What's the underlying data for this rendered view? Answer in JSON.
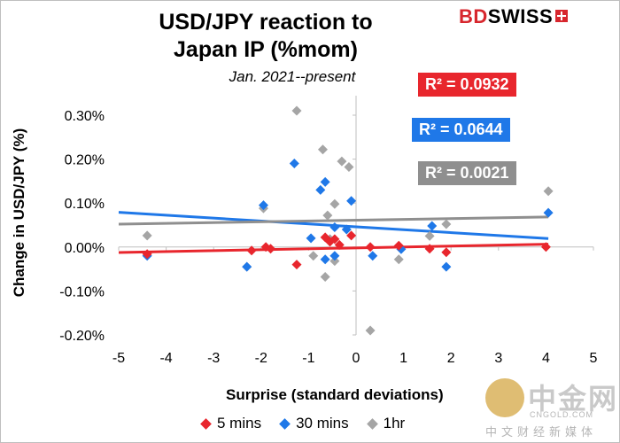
{
  "chart_data": {
    "type": "scatter",
    "title_line1": "USD/JPY reaction to",
    "title_line2": "Japan IP (%mom)",
    "subtitle": "Jan. 2021--present",
    "xlabel": "Surprise (standard deviations)",
    "ylabel": "Change in USD/JPY (%)",
    "xlim": [
      -5,
      5
    ],
    "ylim": [
      -0.2,
      0.3
    ],
    "x_ticks": [
      -5,
      -4,
      -3,
      -2,
      -1,
      0,
      1,
      2,
      3,
      4,
      5
    ],
    "y_ticks": [
      -0.2,
      -0.1,
      0.0,
      0.1,
      0.2,
      0.3
    ],
    "x_tick_labels": [
      "-5",
      "-4",
      "-3",
      "-2",
      "-1",
      "0",
      "1",
      "2",
      "3",
      "4",
      "5"
    ],
    "y_tick_labels": [
      "-0.20%",
      "-0.10%",
      "0.00%",
      "0.10%",
      "0.20%",
      "0.30%"
    ],
    "series": [
      {
        "name": "5 mins",
        "color": "#e8262d",
        "points": [
          [
            -4.4,
            -0.016
          ],
          [
            -2.2,
            -0.008
          ],
          [
            -1.9,
            0.0
          ],
          [
            -1.8,
            -0.004
          ],
          [
            -1.25,
            -0.04
          ],
          [
            -0.65,
            0.022
          ],
          [
            -0.55,
            0.012
          ],
          [
            -0.45,
            0.018
          ],
          [
            -0.35,
            0.005
          ],
          [
            -0.1,
            0.026
          ],
          [
            0.3,
            0.0
          ],
          [
            0.9,
            0.003
          ],
          [
            1.55,
            -0.004
          ],
          [
            1.9,
            -0.012
          ],
          [
            4.0,
            0.0
          ]
        ],
        "trend": {
          "slope": 0.0021,
          "intercept": -0.002,
          "r2_label": "R² = 0.0932"
        }
      },
      {
        "name": "30 mins",
        "color": "#1f78e8",
        "points": [
          [
            -4.4,
            -0.02
          ],
          [
            -2.3,
            -0.045
          ],
          [
            -1.95,
            0.095
          ],
          [
            -1.3,
            0.19
          ],
          [
            -0.95,
            0.02
          ],
          [
            -0.75,
            0.13
          ],
          [
            -0.65,
            0.148
          ],
          [
            -0.65,
            -0.028
          ],
          [
            -0.45,
            0.045
          ],
          [
            -0.45,
            -0.02
          ],
          [
            -0.2,
            0.04
          ],
          [
            -0.1,
            0.105
          ],
          [
            0.35,
            -0.02
          ],
          [
            0.95,
            -0.005
          ],
          [
            1.6,
            0.048
          ],
          [
            1.9,
            -0.045
          ],
          [
            4.05,
            0.078
          ]
        ],
        "trend": {
          "slope": -0.0066,
          "intercept": 0.046,
          "r2_label": "R² = 0.0644"
        }
      },
      {
        "name": "1hr",
        "color": "#a5a5a5",
        "points": [
          [
            -4.4,
            0.026
          ],
          [
            -2.3,
            -0.045
          ],
          [
            -1.95,
            0.088
          ],
          [
            -1.25,
            0.31
          ],
          [
            -0.9,
            -0.02
          ],
          [
            -0.7,
            0.222
          ],
          [
            -0.65,
            -0.068
          ],
          [
            -0.6,
            0.072
          ],
          [
            -0.55,
            0.018
          ],
          [
            -0.45,
            0.098
          ],
          [
            -0.45,
            -0.032
          ],
          [
            -0.3,
            0.195
          ],
          [
            -0.15,
            0.182
          ],
          [
            0.3,
            -0.19
          ],
          [
            0.9,
            -0.028
          ],
          [
            1.55,
            0.025
          ],
          [
            1.9,
            0.052
          ],
          [
            4.05,
            0.127
          ]
        ],
        "trend": {
          "slope": 0.0018,
          "intercept": 0.061,
          "r2_label": "R² = 0.0021"
        }
      }
    ],
    "legend": [
      "5 mins",
      "30 mins",
      "1hr"
    ],
    "grid": false
  },
  "logo": {
    "part1": "BD",
    "part2": "SWISS"
  },
  "watermark": {
    "big": "中金网",
    "url": "CNGOLD.COM",
    "cn": "中文财经新媒体"
  }
}
